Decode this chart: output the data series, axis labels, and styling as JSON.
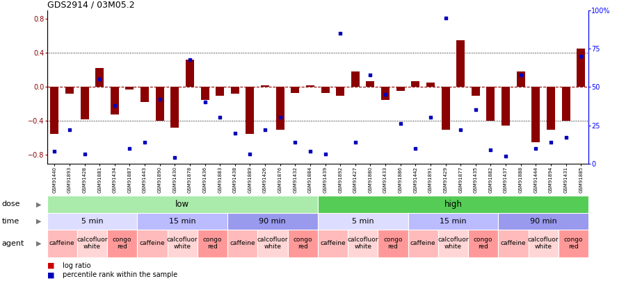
{
  "title": "GDS2914 / 03M05.2",
  "samples": [
    "GSM91440",
    "GSM91893",
    "GSM91428",
    "GSM91881",
    "GSM91434",
    "GSM91887",
    "GSM91443",
    "GSM91890",
    "GSM91430",
    "GSM91878",
    "GSM91436",
    "GSM91883",
    "GSM91438",
    "GSM91889",
    "GSM91426",
    "GSM91876",
    "GSM91432",
    "GSM91884",
    "GSM91439",
    "GSM91892",
    "GSM91427",
    "GSM91880",
    "GSM91433",
    "GSM91886",
    "GSM91442",
    "GSM91891",
    "GSM91429",
    "GSM91877",
    "GSM91435",
    "GSM91882",
    "GSM91437",
    "GSM91888",
    "GSM91444",
    "GSM91894",
    "GSM91431",
    "GSM91885"
  ],
  "log_ratio": [
    -0.55,
    -0.08,
    -0.38,
    0.22,
    -0.32,
    -0.03,
    -0.18,
    -0.4,
    -0.48,
    0.32,
    -0.15,
    -0.1,
    -0.08,
    -0.55,
    0.02,
    -0.5,
    -0.07,
    0.02,
    -0.07,
    -0.1,
    0.18,
    0.07,
    -0.15,
    -0.05,
    0.07,
    0.05,
    -0.5,
    0.55,
    -0.1,
    -0.4,
    -0.45,
    0.18,
    -0.65,
    -0.5,
    -0.4,
    0.45
  ],
  "percentile": [
    8,
    22,
    6,
    55,
    38,
    10,
    14,
    42,
    4,
    68,
    40,
    30,
    20,
    6,
    22,
    30,
    14,
    8,
    6,
    85,
    14,
    58,
    45,
    26,
    10,
    30,
    95,
    22,
    35,
    9,
    5,
    58,
    10,
    14,
    17,
    70
  ],
  "ylim_left": [
    -0.9,
    0.9
  ],
  "ylim_right": [
    0,
    100
  ],
  "yticks_left": [
    -0.8,
    -0.4,
    0.0,
    0.4,
    0.8
  ],
  "yticks_right": [
    0,
    25,
    50,
    75,
    100
  ],
  "ytick_labels_right": [
    "0",
    "25",
    "50",
    "75",
    "100%"
  ],
  "hlines_dotted": [
    0.4,
    -0.4
  ],
  "hline_dashed": 0.0,
  "bar_color": "#8B0000",
  "dot_color": "#0000BB",
  "dose_groups": [
    {
      "label": "low",
      "start": 0,
      "end": 18,
      "color": "#AAEAAA"
    },
    {
      "label": "high",
      "start": 18,
      "end": 36,
      "color": "#55CC55"
    }
  ],
  "time_groups": [
    {
      "label": "5 min",
      "start": 0,
      "end": 6,
      "color": "#DDDDFF"
    },
    {
      "label": "15 min",
      "start": 6,
      "end": 12,
      "color": "#BBBBFF"
    },
    {
      "label": "90 min",
      "start": 12,
      "end": 18,
      "color": "#9999EE"
    },
    {
      "label": "5 min",
      "start": 18,
      "end": 24,
      "color": "#DDDDFF"
    },
    {
      "label": "15 min",
      "start": 24,
      "end": 30,
      "color": "#BBBBFF"
    },
    {
      "label": "90 min",
      "start": 30,
      "end": 36,
      "color": "#9999EE"
    }
  ],
  "agent_groups": [
    {
      "label": "caffeine",
      "start": 0,
      "end": 2,
      "color": "#FFBBBB"
    },
    {
      "label": "calcofluor\nwhite",
      "start": 2,
      "end": 4,
      "color": "#FFD5D5"
    },
    {
      "label": "congo\nred",
      "start": 4,
      "end": 6,
      "color": "#FF9999"
    },
    {
      "label": "caffeine",
      "start": 6,
      "end": 8,
      "color": "#FFBBBB"
    },
    {
      "label": "calcofluor\nwhite",
      "start": 8,
      "end": 10,
      "color": "#FFD5D5"
    },
    {
      "label": "congo\nred",
      "start": 10,
      "end": 12,
      "color": "#FF9999"
    },
    {
      "label": "caffeine",
      "start": 12,
      "end": 14,
      "color": "#FFBBBB"
    },
    {
      "label": "calcofluor\nwhite",
      "start": 14,
      "end": 16,
      "color": "#FFD5D5"
    },
    {
      "label": "congo\nred",
      "start": 16,
      "end": 18,
      "color": "#FF9999"
    },
    {
      "label": "caffeine",
      "start": 18,
      "end": 20,
      "color": "#FFBBBB"
    },
    {
      "label": "calcofluor\nwhite",
      "start": 20,
      "end": 22,
      "color": "#FFD5D5"
    },
    {
      "label": "congo\nred",
      "start": 22,
      "end": 24,
      "color": "#FF9999"
    },
    {
      "label": "caffeine",
      "start": 24,
      "end": 26,
      "color": "#FFBBBB"
    },
    {
      "label": "calcofluor\nwhite",
      "start": 26,
      "end": 28,
      "color": "#FFD5D5"
    },
    {
      "label": "congo\nred",
      "start": 28,
      "end": 30,
      "color": "#FF9999"
    },
    {
      "label": "caffeine",
      "start": 30,
      "end": 32,
      "color": "#FFBBBB"
    },
    {
      "label": "calcofluor\nwhite",
      "start": 32,
      "end": 34,
      "color": "#FFD5D5"
    },
    {
      "label": "congo\nred",
      "start": 34,
      "end": 36,
      "color": "#FF9999"
    }
  ],
  "legend_bar_color": "#CC0000",
  "legend_dot_color": "#0000BB"
}
